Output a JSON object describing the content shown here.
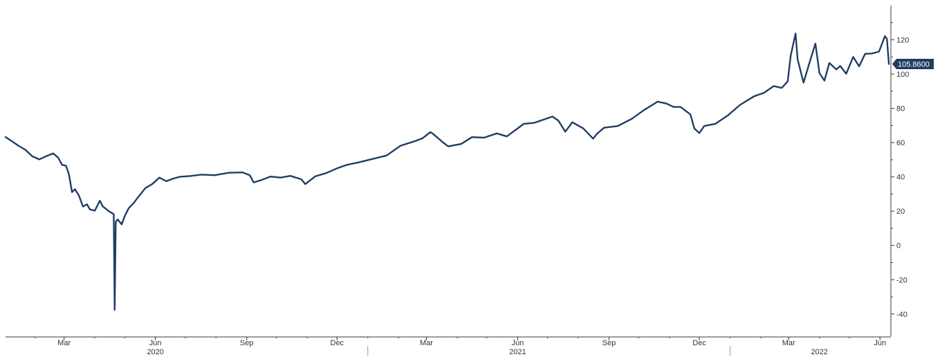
{
  "chart_data": {
    "type": "line",
    "title": "",
    "xlabel": "",
    "ylabel": "",
    "ylim": [
      -53,
      140
    ],
    "xlim": [
      "2020-01-02",
      "2022-06-12"
    ],
    "y_ticks": [
      "120",
      "100",
      "80",
      "60",
      "40",
      "20",
      "0",
      "-20",
      "-40"
    ],
    "x_ticks": [
      {
        "date": "2020-03-01",
        "label": "Mar"
      },
      {
        "date": "2020-06-01",
        "label": "Jun"
      },
      {
        "date": "2020-09-01",
        "label": "Sep"
      },
      {
        "date": "2020-12-01",
        "label": "Dec"
      },
      {
        "date": "2021-03-01",
        "label": "Mar"
      },
      {
        "date": "2021-06-01",
        "label": "Jun"
      },
      {
        "date": "2021-09-01",
        "label": "Sep"
      },
      {
        "date": "2021-12-01",
        "label": "Dec"
      },
      {
        "date": "2022-03-01",
        "label": "Mar"
      },
      {
        "date": "2022-06-01",
        "label": "Jun"
      }
    ],
    "years": [
      {
        "label": "2020",
        "center": "2020-06-01"
      },
      {
        "label": "2021",
        "center": "2021-06-01"
      },
      {
        "label": "2022",
        "center": "2022-04-01"
      }
    ],
    "last_value_label": "105.8600",
    "grid": false,
    "legend": "none",
    "line_color": "#1f3d64",
    "series": [
      {
        "x": [
          "2020-01-02",
          "2020-01-08",
          "2020-01-15",
          "2020-01-22",
          "2020-01-29",
          "2020-02-05",
          "2020-02-12",
          "2020-02-19",
          "2020-02-24",
          "2020-02-28",
          "2020-03-03",
          "2020-03-06",
          "2020-03-09",
          "2020-03-12",
          "2020-03-16",
          "2020-03-20",
          "2020-03-24",
          "2020-03-27",
          "2020-04-01",
          "2020-04-06",
          "2020-04-09",
          "2020-04-15",
          "2020-04-20",
          "2020-04-21",
          "2020-04-22",
          "2020-04-24",
          "2020-04-28",
          "2020-05-01",
          "2020-05-05",
          "2020-05-10",
          "2020-05-15",
          "2020-05-22",
          "2020-05-29",
          "2020-06-05",
          "2020-06-12",
          "2020-06-19",
          "2020-06-26",
          "2020-07-06",
          "2020-07-17",
          "2020-07-31",
          "2020-08-14",
          "2020-08-28",
          "2020-09-04",
          "2020-09-08",
          "2020-09-15",
          "2020-09-25",
          "2020-10-05",
          "2020-10-15",
          "2020-10-26",
          "2020-10-30",
          "2020-11-09",
          "2020-11-20",
          "2020-12-01",
          "2020-12-11",
          "2020-12-22",
          "2021-01-06",
          "2021-01-20",
          "2021-02-03",
          "2021-02-17",
          "2021-02-25",
          "2021-03-05",
          "2021-03-08",
          "2021-03-18",
          "2021-03-23",
          "2021-04-05",
          "2021-04-16",
          "2021-04-28",
          "2021-05-11",
          "2021-05-21",
          "2021-06-07",
          "2021-06-18",
          "2021-07-06",
          "2021-07-12",
          "2021-07-19",
          "2021-07-26",
          "2021-08-06",
          "2021-08-16",
          "2021-08-20",
          "2021-08-27",
          "2021-09-10",
          "2021-09-24",
          "2021-10-06",
          "2021-10-20",
          "2021-10-29",
          "2021-11-05",
          "2021-11-12",
          "2021-11-22",
          "2021-11-26",
          "2021-12-01",
          "2021-12-06",
          "2021-12-17",
          "2021-12-30",
          "2022-01-11",
          "2022-01-25",
          "2022-02-04",
          "2022-02-14",
          "2022-02-22",
          "2022-02-28",
          "2022-03-03",
          "2022-03-08",
          "2022-03-10",
          "2022-03-16",
          "2022-03-23",
          "2022-03-28",
          "2022-04-01",
          "2022-04-06",
          "2022-04-11",
          "2022-04-18",
          "2022-04-22",
          "2022-04-28",
          "2022-05-05",
          "2022-05-11",
          "2022-05-17",
          "2022-05-24",
          "2022-05-31",
          "2022-06-06",
          "2022-06-08",
          "2022-06-10"
        ],
        "y": [
          63.3,
          61.0,
          58.2,
          55.8,
          52.0,
          50.2,
          52.1,
          53.7,
          51.2,
          47.0,
          46.5,
          41.3,
          31.1,
          32.8,
          29.0,
          22.7,
          24.0,
          21.0,
          20.3,
          26.1,
          22.8,
          20.0,
          18.3,
          -37.6,
          13.8,
          15.2,
          12.3,
          17.0,
          21.6,
          24.7,
          28.5,
          33.5,
          35.9,
          39.6,
          37.5,
          39.0,
          40.1,
          40.5,
          41.3,
          41.0,
          42.4,
          42.6,
          41.0,
          36.8,
          38.0,
          40.2,
          39.6,
          40.6,
          38.6,
          35.8,
          40.3,
          42.2,
          45.0,
          47.0,
          48.4,
          50.5,
          52.5,
          58.2,
          60.8,
          62.5,
          66.1,
          65.0,
          60.0,
          57.8,
          59.2,
          63.2,
          62.9,
          65.4,
          63.6,
          70.9,
          71.6,
          75.2,
          72.8,
          66.4,
          71.9,
          68.3,
          62.3,
          65.2,
          68.7,
          69.7,
          73.9,
          78.9,
          83.9,
          82.8,
          80.8,
          80.8,
          76.5,
          68.2,
          65.6,
          69.7,
          70.9,
          76.0,
          82.0,
          87.0,
          89.0,
          93.0,
          91.9,
          95.7,
          110.6,
          123.7,
          108.7,
          95.0,
          108.6,
          117.8,
          100.6,
          96.2,
          106.5,
          102.7,
          104.7,
          100.2,
          110.0,
          104.5,
          111.8,
          112.0,
          113.1,
          122.1,
          120.5,
          105.9
        ]
      }
    ]
  }
}
